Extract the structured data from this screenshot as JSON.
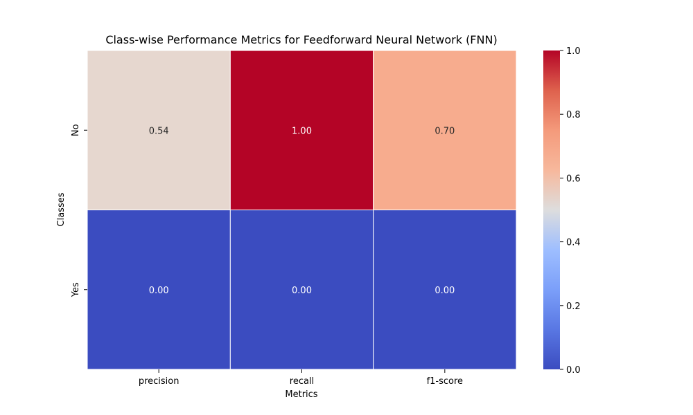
{
  "chart_data": {
    "type": "heatmap",
    "title": "Class-wise Performance Metrics for Feedforward Neural Network (FNN)",
    "xlabel": "Metrics",
    "ylabel": "Classes",
    "columns": [
      "precision",
      "recall",
      "f1-score"
    ],
    "rows": [
      "No",
      "Yes"
    ],
    "values": [
      [
        0.54,
        1.0,
        0.7
      ],
      [
        0.0,
        0.0,
        0.0
      ]
    ],
    "cell_labels": [
      [
        "0.54",
        "1.00",
        "0.70"
      ],
      [
        "0.00",
        "0.00",
        "0.00"
      ]
    ],
    "colormap": "coolwarm",
    "colorbar": {
      "range": [
        0,
        1
      ],
      "ticks": [
        0,
        0.2,
        0.4,
        0.6,
        0.8,
        1.0
      ],
      "tick_labels": [
        "0.0",
        "0.2",
        "0.4",
        "0.6",
        "0.8",
        "1.0"
      ]
    },
    "colors": {
      "low": "#3b4cc0",
      "mid": "#dddddd",
      "high": "#b40426"
    }
  }
}
